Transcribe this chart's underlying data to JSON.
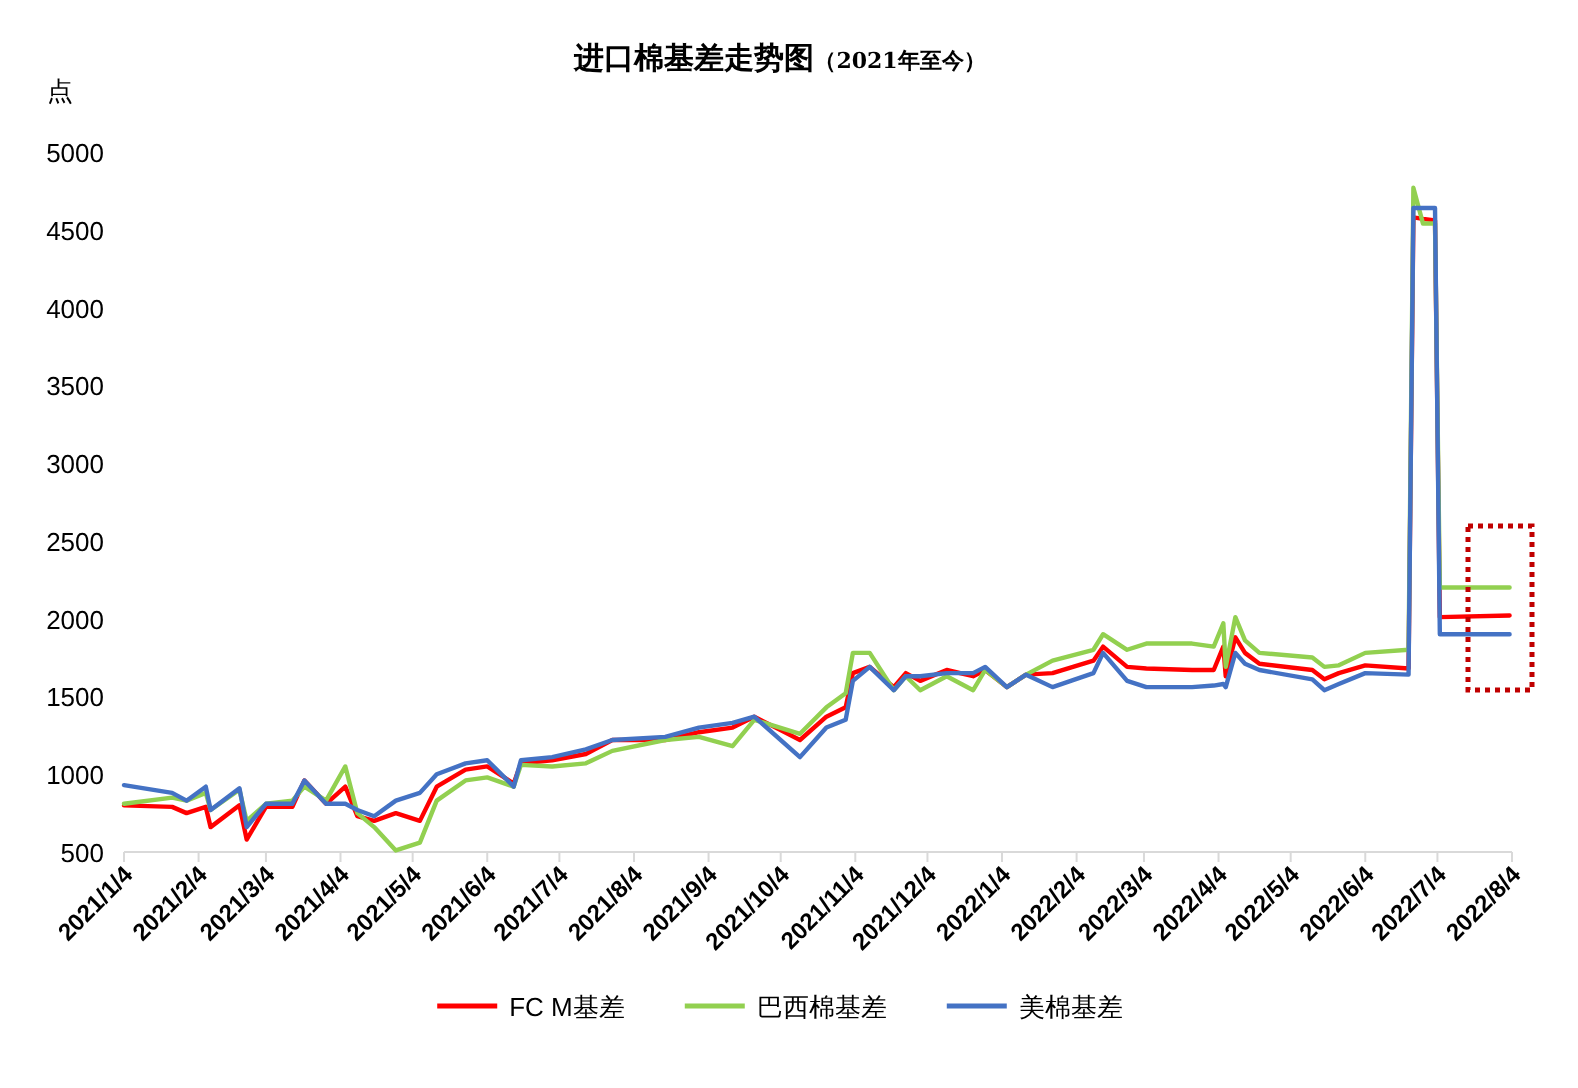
{
  "chart_data": {
    "type": "line",
    "title": "进口棉基差走势图",
    "subtitle": "（2021年至今）",
    "ylabel": "点",
    "x": [
      "2021-01-04",
      "2021-01-24",
      "2021-01-30",
      "2021-02-07",
      "2021-02-09",
      "2021-02-21",
      "2021-02-24",
      "2021-03-04",
      "2021-03-15",
      "2021-03-20",
      "2021-03-29",
      "2021-04-06",
      "2021-04-11",
      "2021-04-18",
      "2021-04-27",
      "2021-05-07",
      "2021-05-14",
      "2021-05-26",
      "2021-06-04",
      "2021-06-15",
      "2021-06-18",
      "2021-07-01",
      "2021-07-15",
      "2021-07-26",
      "2021-08-17",
      "2021-08-31",
      "2021-09-14",
      "2021-09-23",
      "2021-10-12",
      "2021-10-23",
      "2021-10-31",
      "2021-11-03",
      "2021-11-10",
      "2021-11-20",
      "2021-11-25",
      "2021-12-01",
      "2021-12-12",
      "2021-12-23",
      "2021-12-28",
      "2022-01-06",
      "2022-01-14",
      "2022-01-25",
      "2022-02-11",
      "2022-02-15",
      "2022-02-25",
      "2022-03-05",
      "2022-03-24",
      "2022-04-02",
      "2022-04-06",
      "2022-04-07",
      "2022-04-11",
      "2022-04-15",
      "2022-04-21",
      "2022-05-13",
      "2022-05-18",
      "2022-05-24",
      "2022-06-04",
      "2022-06-22",
      "2022-06-24",
      "2022-06-28",
      "2022-07-03",
      "2022-07-05",
      "2022-08-03"
    ],
    "series": [
      {
        "name": "FC M基差",
        "color": "#ff0000",
        "values": [
          800,
          790,
          750,
          790,
          660,
          800,
          580,
          790,
          790,
          960,
          810,
          920,
          730,
          700,
          750,
          700,
          920,
          1030,
          1050,
          940,
          1070,
          1090,
          1130,
          1220,
          1220,
          1270,
          1300,
          1370,
          1220,
          1370,
          1430,
          1650,
          1690,
          1560,
          1650,
          1600,
          1670,
          1630,
          1670,
          1560,
          1640,
          1650,
          1730,
          1820,
          1690,
          1680,
          1670,
          1670,
          1820,
          1630,
          1880,
          1780,
          1710,
          1670,
          1610,
          1650,
          1700,
          1680,
          4580,
          4570,
          4560,
          2010,
          2020
        ]
      },
      {
        "name": "巴西棉基差",
        "color": "#92d050",
        "values": [
          810,
          850,
          830,
          880,
          770,
          900,
          700,
          810,
          830,
          920,
          830,
          1050,
          750,
          660,
          510,
          560,
          830,
          960,
          980,
          920,
          1060,
          1050,
          1070,
          1150,
          1220,
          1240,
          1180,
          1350,
          1260,
          1430,
          1520,
          1780,
          1780,
          1540,
          1630,
          1540,
          1630,
          1540,
          1670,
          1560,
          1640,
          1730,
          1800,
          1900,
          1800,
          1840,
          1840,
          1820,
          1970,
          1690,
          2010,
          1860,
          1780,
          1750,
          1690,
          1700,
          1780,
          1800,
          4770,
          4540,
          4540,
          2200,
          2200
        ]
      },
      {
        "name": "美棉基差",
        "color": "#4472c4",
        "values": [
          930,
          880,
          830,
          920,
          770,
          910,
          660,
          810,
          810,
          960,
          810,
          810,
          770,
          730,
          830,
          880,
          1000,
          1070,
          1090,
          920,
          1090,
          1110,
          1160,
          1220,
          1240,
          1300,
          1330,
          1370,
          1110,
          1300,
          1350,
          1600,
          1690,
          1540,
          1630,
          1630,
          1650,
          1650,
          1690,
          1560,
          1640,
          1560,
          1650,
          1780,
          1600,
          1560,
          1560,
          1570,
          1580,
          1560,
          1780,
          1710,
          1670,
          1610,
          1540,
          1580,
          1650,
          1640,
          4640,
          4640,
          4640,
          1900,
          1900
        ]
      }
    ],
    "xlim": [
      "2021-01-04",
      "2022-08-04"
    ],
    "xticks": [
      {
        "value": "2021-01-04",
        "label": "2021/1/4"
      },
      {
        "value": "2021-02-04",
        "label": "2021/2/4"
      },
      {
        "value": "2021-03-04",
        "label": "2021/3/4"
      },
      {
        "value": "2021-04-04",
        "label": "2021/4/4"
      },
      {
        "value": "2021-05-04",
        "label": "2021/5/4"
      },
      {
        "value": "2021-06-04",
        "label": "2021/6/4"
      },
      {
        "value": "2021-07-04",
        "label": "2021/7/4"
      },
      {
        "value": "2021-08-04",
        "label": "2021/8/4"
      },
      {
        "value": "2021-09-04",
        "label": "2021/9/4"
      },
      {
        "value": "2021-10-04",
        "label": "2021/10/4"
      },
      {
        "value": "2021-11-04",
        "label": "2021/11/4"
      },
      {
        "value": "2021-12-04",
        "label": "2021/12/4"
      },
      {
        "value": "2022-01-04",
        "label": "2022/1/4"
      },
      {
        "value": "2022-02-04",
        "label": "2022/2/4"
      },
      {
        "value": "2022-03-04",
        "label": "2022/3/4"
      },
      {
        "value": "2022-04-04",
        "label": "2022/4/4"
      },
      {
        "value": "2022-05-04",
        "label": "2022/5/4"
      },
      {
        "value": "2022-06-04",
        "label": "2022/6/4"
      },
      {
        "value": "2022-07-04",
        "label": "2022/7/4"
      },
      {
        "value": "2022-08-04",
        "label": "2022/8/4"
      }
    ],
    "ylim": [
      500,
      5000
    ],
    "yticks": [
      500,
      1000,
      1500,
      2000,
      2500,
      3000,
      3500,
      4000,
      4500,
      5000
    ],
    "legend": "bottom"
  }
}
